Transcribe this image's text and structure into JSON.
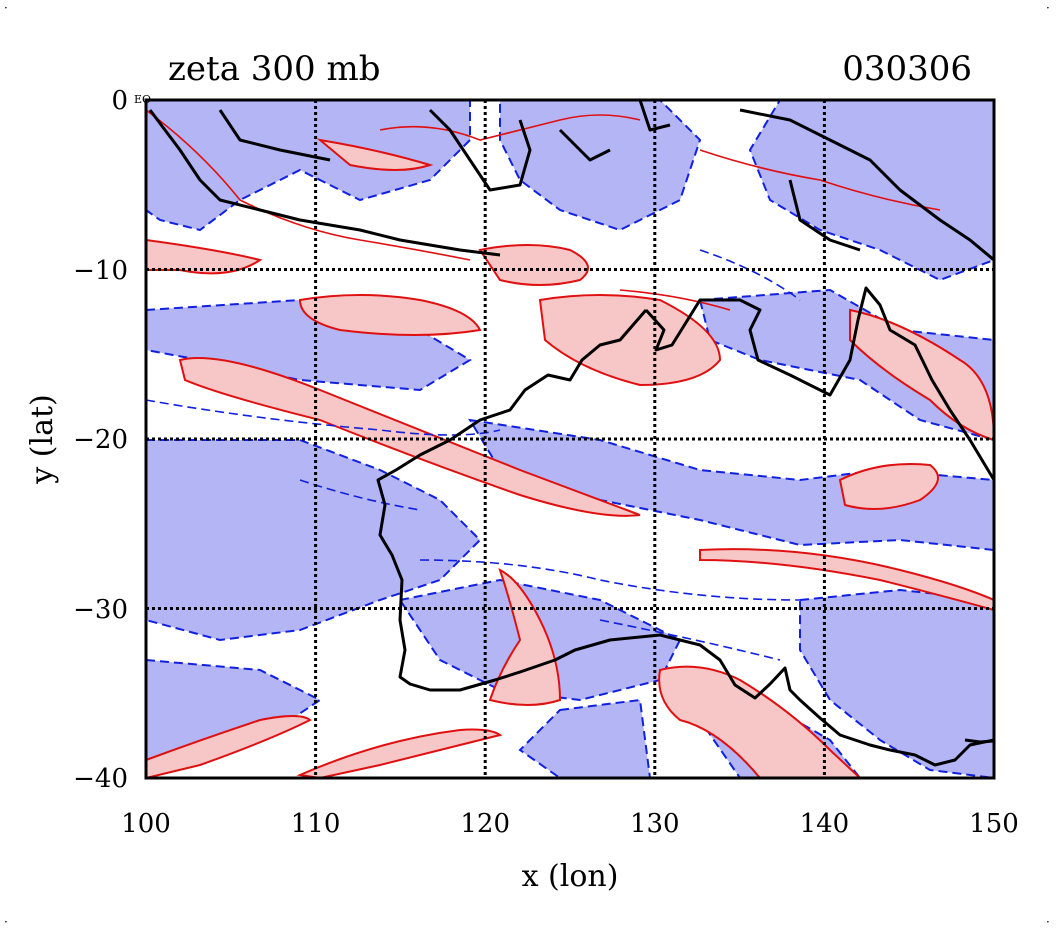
{
  "title": "zeta 300 mb",
  "date_code": "030306",
  "corner_mark": "EO",
  "chart_data": {
    "type": "contour-map",
    "variable": "zeta",
    "level": "300 mb",
    "xlabel": "x (lon)",
    "ylabel": "y (lat)",
    "xlim": [
      100,
      150
    ],
    "ylim": [
      -40,
      0
    ],
    "x_ticks": [
      "100",
      "110",
      "120",
      "130",
      "140",
      "150"
    ],
    "y_ticks": [
      "0",
      "−10",
      "−20",
      "−30",
      "−40"
    ],
    "grid": true,
    "colors": {
      "positive_fill": "#f7c7c7",
      "positive_line": "#e01010",
      "negative_fill": "#b3b5f5",
      "negative_line": "#1020e0",
      "coastline": "#000000",
      "grid": "#000000"
    }
  }
}
